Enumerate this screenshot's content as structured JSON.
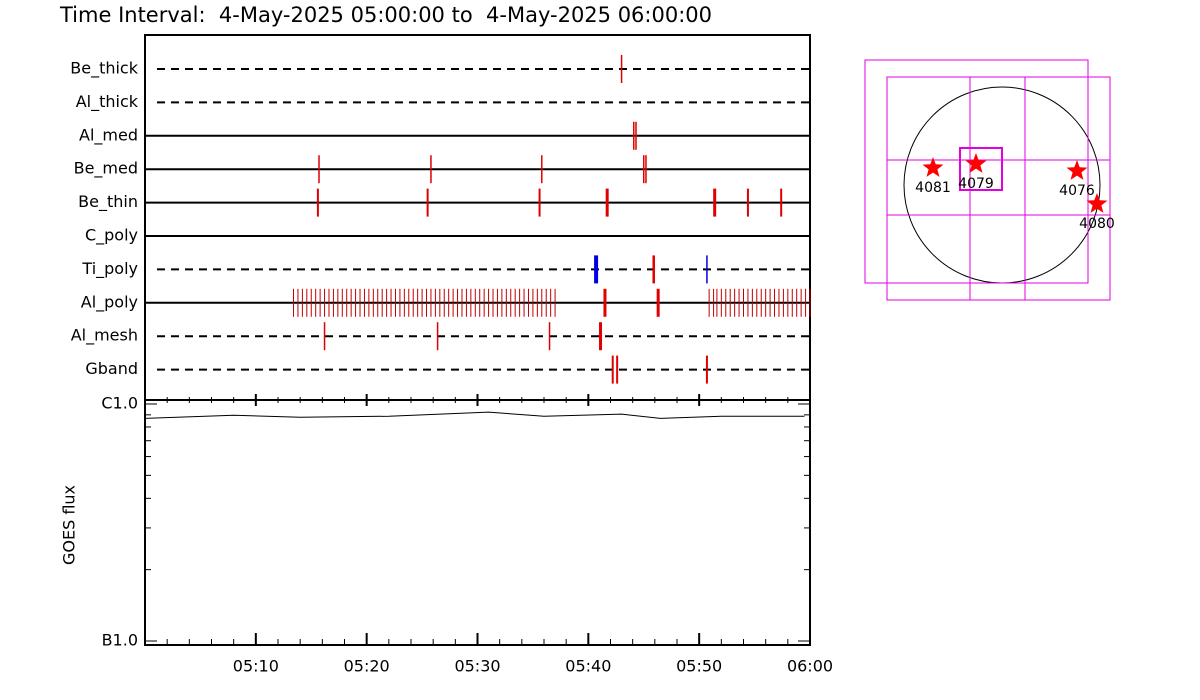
{
  "title": "Time Interval:  4-May-2025 05:00:00 to  4-May-2025 06:00:00",
  "timeline": {
    "type": "event-timeline",
    "xlim": [
      0,
      60
    ],
    "rows": [
      {
        "name": "Be_thick",
        "line": "dashed",
        "marks": [
          {
            "color": "#e00000",
            "width": 1.5,
            "times": [
              43.0
            ]
          }
        ]
      },
      {
        "name": "Al_thick",
        "line": "dashed",
        "marks": []
      },
      {
        "name": "Al_med",
        "line": "solid",
        "marks": [
          {
            "color": "#e00000",
            "width": 1.5,
            "times": [
              44.1,
              44.3
            ]
          }
        ]
      },
      {
        "name": "Be_med",
        "line": "solid",
        "marks": [
          {
            "color": "#e00000",
            "width": 1.5,
            "times": [
              15.7,
              25.8,
              35.8,
              45.0,
              45.2
            ]
          }
        ]
      },
      {
        "name": "Be_thin",
        "line": "solid",
        "marks": [
          {
            "color": "#e00000",
            "width": 2,
            "times": [
              15.6,
              25.5,
              35.6,
              54.4,
              57.4
            ]
          },
          {
            "color": "#e00000",
            "width": 3,
            "times": [
              41.7,
              51.4
            ]
          }
        ]
      },
      {
        "name": "C_poly",
        "line": "solid",
        "marks": []
      },
      {
        "name": "Ti_poly",
        "line": "dashed",
        "marks": [
          {
            "color": "#0000e0",
            "width": 4,
            "times": [
              40.7
            ]
          },
          {
            "color": "#0000e0",
            "width": 1.5,
            "times": [
              50.7
            ]
          },
          {
            "color": "#e00000",
            "width": 2.5,
            "times": [
              45.9
            ]
          }
        ]
      },
      {
        "name": "Al_poly",
        "line": "solid",
        "marks": [
          {
            "color": "#c00000",
            "width": 1,
            "times": [
              13.4,
              13.8,
              14.2,
              14.6,
              15.0,
              15.4,
              15.8,
              16.2,
              16.6,
              17.0,
              17.4,
              17.8,
              18.2,
              18.6,
              19.0,
              19.4,
              19.8,
              20.2,
              20.6,
              21.0,
              21.4,
              21.8,
              22.2,
              22.6,
              23.0,
              23.4,
              23.8,
              24.2,
              24.6,
              25.0,
              25.4,
              25.8,
              26.2,
              26.6,
              27.0,
              27.4,
              27.8,
              28.2,
              28.6,
              29.0,
              29.4,
              29.8,
              30.2,
              30.6,
              31.0,
              31.4,
              31.8,
              32.2,
              32.6,
              33.0,
              33.4,
              33.8,
              34.2,
              34.6,
              35.0,
              35.4,
              35.8,
              36.2,
              36.6,
              37.0,
              50.9,
              51.3,
              51.6,
              52.0,
              52.4,
              52.8,
              53.2,
              53.6,
              54.0,
              54.4,
              54.8,
              55.2,
              55.6,
              56.0,
              56.4,
              56.8,
              57.2,
              57.6,
              58.0,
              58.4,
              58.8,
              59.2,
              59.6,
              60.0
            ]
          },
          {
            "color": "#e00000",
            "width": 3,
            "times": [
              41.5,
              46.3
            ]
          }
        ]
      },
      {
        "name": "Al_mesh",
        "line": "dashed",
        "marks": [
          {
            "color": "#e00000",
            "width": 1.5,
            "times": [
              16.2,
              26.4,
              36.5
            ]
          },
          {
            "color": "#e00000",
            "width": 3,
            "times": [
              41.1
            ]
          }
        ]
      },
      {
        "name": "Gband",
        "line": "dashed",
        "marks": [
          {
            "color": "#e00000",
            "width": 2,
            "times": [
              42.2,
              42.6,
              50.7
            ]
          }
        ]
      }
    ]
  },
  "goes": {
    "type": "line",
    "y_label": "GOES flux",
    "log_scale": true,
    "ylim": [
      1e-07,
      1e-06
    ],
    "yticks": [
      {
        "value": 1e-07,
        "label": "B1.0"
      },
      {
        "value": 1e-06,
        "label": "C1.0"
      }
    ],
    "yminor": [
      2e-07,
      3e-07,
      4e-07,
      5e-07,
      6e-07,
      7e-07,
      8e-07,
      9e-07
    ],
    "xlim": [
      0,
      60
    ],
    "xticks": [
      {
        "value": 10,
        "label": "05:10"
      },
      {
        "value": 20,
        "label": "05:20"
      },
      {
        "value": 30,
        "label": "05:30"
      },
      {
        "value": 40,
        "label": "05:40"
      },
      {
        "value": 50,
        "label": "05:50"
      },
      {
        "value": 60,
        "label": "06:00"
      }
    ],
    "xminor": [
      2,
      4,
      6,
      8,
      12,
      14,
      16,
      18,
      22,
      24,
      26,
      28,
      32,
      34,
      36,
      38,
      42,
      44,
      46,
      48,
      52,
      54,
      56,
      58
    ],
    "x": [
      0,
      8,
      14,
      22,
      31,
      36,
      43,
      46.5,
      52,
      59.5
    ],
    "values": [
      8.7e-07,
      8.97e-07,
      8.79e-07,
      8.88e-07,
      9.24e-07,
      8.88e-07,
      9.06e-07,
      8.7e-07,
      8.88e-07,
      8.88e-07
    ],
    "color": "#000000"
  },
  "map": {
    "regions": [
      {
        "label": "4081"
      },
      {
        "label": "4079"
      },
      {
        "label": "4076"
      },
      {
        "label": "4080"
      }
    ]
  }
}
